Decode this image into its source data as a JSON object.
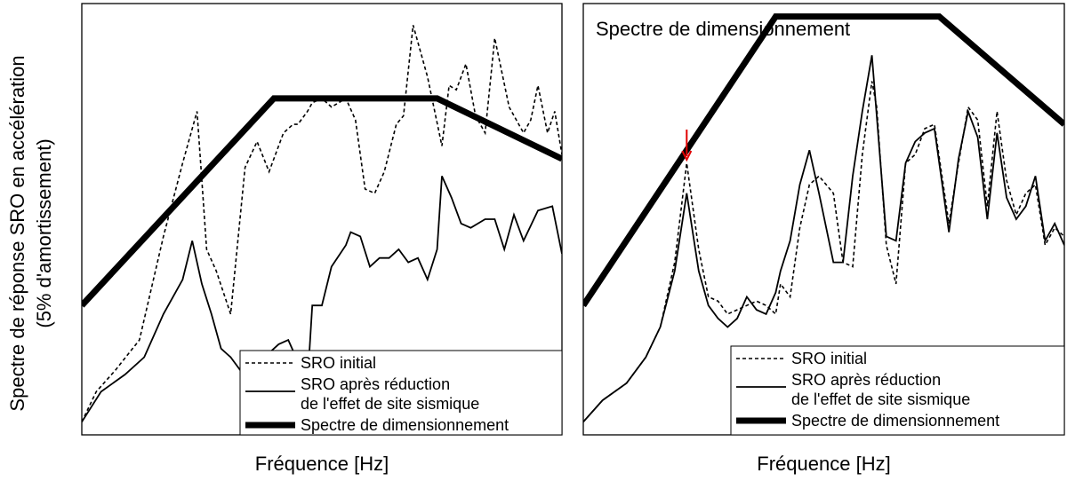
{
  "ylabel_line1": "Spectre de réponse SRO en accélération",
  "ylabel_line2": "(5% d'amortissement)",
  "chart_data": [
    {
      "type": "line",
      "title": "",
      "xlabel": "Fréquence [Hz]",
      "ylabel": "Spectre de réponse SRO en accélération (5% d'amortissement)",
      "xlim": [
        0,
        1
      ],
      "ylim": [
        0,
        1
      ],
      "axis_ticks_printed": false,
      "legend_placement": "bottom-right",
      "series": [
        {
          "name": "SRO initial",
          "style": "dashed",
          "x": [
            0,
            0.03,
            0.07,
            0.12,
            0.17,
            0.21,
            0.24,
            0.26,
            0.28,
            0.31,
            0.34,
            0.365,
            0.39,
            0.42,
            0.44,
            0.45,
            0.47,
            0.48,
            0.5,
            0.52,
            0.55,
            0.57,
            0.59,
            0.61,
            0.63,
            0.655,
            0.67,
            0.69,
            0.72,
            0.75,
            0.765,
            0.78,
            0.8,
            0.82,
            0.84,
            0.86,
            0.875,
            0.89,
            0.92,
            0.935,
            0.95,
            0.97,
            0.985,
            1.0
          ],
          "y": [
            0.03,
            0.1,
            0.15,
            0.22,
            0.46,
            0.63,
            0.75,
            0.43,
            0.38,
            0.28,
            0.62,
            0.68,
            0.61,
            0.7,
            0.72,
            0.72,
            0.75,
            0.77,
            0.78,
            0.76,
            0.78,
            0.73,
            0.57,
            0.56,
            0.61,
            0.72,
            0.74,
            0.95,
            0.83,
            0.67,
            0.81,
            0.8,
            0.86,
            0.74,
            0.7,
            0.92,
            0.84,
            0.76,
            0.7,
            0.73,
            0.81,
            0.7,
            0.75,
            0.65
          ]
        },
        {
          "name": "SRO après réduction de l'effet de site sismique",
          "style": "solid",
          "x": [
            0,
            0.04,
            0.09,
            0.13,
            0.17,
            0.21,
            0.23,
            0.25,
            0.27,
            0.29,
            0.31,
            0.33,
            0.35,
            0.37,
            0.39,
            0.41,
            0.43,
            0.45,
            0.47,
            0.48,
            0.5,
            0.52,
            0.55,
            0.56,
            0.58,
            0.6,
            0.62,
            0.64,
            0.66,
            0.68,
            0.7,
            0.72,
            0.74,
            0.75,
            0.77,
            0.79,
            0.81,
            0.84,
            0.86,
            0.88,
            0.9,
            0.92,
            0.95,
            0.98,
            1.0
          ],
          "y": [
            0.03,
            0.1,
            0.14,
            0.18,
            0.28,
            0.36,
            0.45,
            0.35,
            0.28,
            0.2,
            0.18,
            0.15,
            0.14,
            0.11,
            0.19,
            0.21,
            0.22,
            0.17,
            0.12,
            0.3,
            0.3,
            0.39,
            0.44,
            0.47,
            0.46,
            0.39,
            0.41,
            0.41,
            0.43,
            0.4,
            0.41,
            0.36,
            0.43,
            0.6,
            0.55,
            0.49,
            0.48,
            0.5,
            0.5,
            0.43,
            0.51,
            0.45,
            0.52,
            0.53,
            0.42
          ]
        },
        {
          "name": "Spectre de dimensionnement",
          "style": "thick-solid",
          "x": [
            0,
            0.4,
            0.74,
            1.0
          ],
          "y": [
            0.3,
            0.78,
            0.78,
            0.64
          ]
        }
      ]
    },
    {
      "type": "line",
      "title": "Spectre de dimensionnement",
      "xlabel": "Fréquence [Hz]",
      "ylabel": "",
      "xlim": [
        0,
        1
      ],
      "ylim": [
        0,
        1
      ],
      "axis_ticks_printed": false,
      "legend_placement": "bottom-right",
      "annotation": "red arrow pointing down at the first low-frequency peak",
      "arrow_x": 0.215,
      "series": [
        {
          "name": "SRO initial",
          "style": "dashed",
          "x": [
            0,
            0.04,
            0.09,
            0.13,
            0.16,
            0.19,
            0.215,
            0.24,
            0.26,
            0.28,
            0.3,
            0.32,
            0.34,
            0.36,
            0.38,
            0.4,
            0.41,
            0.43,
            0.45,
            0.47,
            0.49,
            0.52,
            0.54,
            0.56,
            0.58,
            0.6,
            0.61,
            0.63,
            0.65,
            0.67,
            0.69,
            0.71,
            0.73,
            0.76,
            0.78,
            0.8,
            0.82,
            0.84,
            0.86,
            0.88,
            0.9,
            0.92,
            0.94,
            0.96,
            0.98,
            1.0
          ],
          "y": [
            0.03,
            0.08,
            0.12,
            0.18,
            0.25,
            0.4,
            0.63,
            0.43,
            0.32,
            0.31,
            0.28,
            0.29,
            0.3,
            0.31,
            0.3,
            0.28,
            0.35,
            0.32,
            0.48,
            0.58,
            0.6,
            0.56,
            0.4,
            0.39,
            0.65,
            0.82,
            0.76,
            0.44,
            0.35,
            0.63,
            0.65,
            0.71,
            0.72,
            0.49,
            0.63,
            0.76,
            0.73,
            0.53,
            0.75,
            0.59,
            0.51,
            0.56,
            0.58,
            0.44,
            0.48,
            0.46
          ]
        },
        {
          "name": "SRO après réduction de l'effet de site sismique",
          "style": "solid",
          "x": [
            0,
            0.04,
            0.09,
            0.13,
            0.16,
            0.19,
            0.215,
            0.24,
            0.26,
            0.28,
            0.3,
            0.32,
            0.34,
            0.36,
            0.38,
            0.4,
            0.41,
            0.43,
            0.45,
            0.47,
            0.49,
            0.52,
            0.54,
            0.56,
            0.58,
            0.6,
            0.61,
            0.63,
            0.65,
            0.67,
            0.69,
            0.71,
            0.73,
            0.76,
            0.78,
            0.8,
            0.82,
            0.84,
            0.86,
            0.88,
            0.9,
            0.92,
            0.94,
            0.96,
            0.98,
            1.0
          ],
          "y": [
            0.03,
            0.08,
            0.12,
            0.18,
            0.25,
            0.38,
            0.56,
            0.38,
            0.3,
            0.27,
            0.25,
            0.27,
            0.32,
            0.29,
            0.28,
            0.33,
            0.38,
            0.45,
            0.58,
            0.66,
            0.56,
            0.4,
            0.4,
            0.6,
            0.75,
            0.88,
            0.74,
            0.46,
            0.45,
            0.63,
            0.68,
            0.7,
            0.71,
            0.47,
            0.64,
            0.75,
            0.69,
            0.5,
            0.7,
            0.55,
            0.5,
            0.53,
            0.6,
            0.45,
            0.49,
            0.44
          ]
        },
        {
          "name": "Spectre de dimensionnement",
          "style": "thick-solid",
          "x": [
            0,
            0.4,
            0.74,
            1.0
          ],
          "y": [
            0.3,
            0.97,
            0.97,
            0.72
          ]
        }
      ]
    }
  ]
}
